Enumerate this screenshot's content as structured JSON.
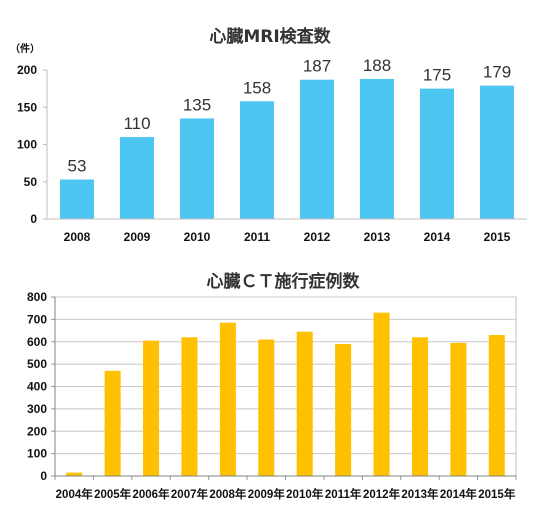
{
  "chart_data": [
    {
      "type": "bar",
      "title": "心臓MRI検査数",
      "unit_label": "（件）",
      "categories": [
        "2008",
        "2009",
        "2010",
        "2011",
        "2012",
        "2013",
        "2014",
        "2015"
      ],
      "values": [
        53,
        110,
        135,
        158,
        187,
        188,
        175,
        179
      ],
      "data_labels": [
        "53",
        "110",
        "135",
        "158",
        "187",
        "188",
        "175",
        "179"
      ],
      "ylim": [
        0,
        200
      ],
      "yticks": [
        "0",
        "50",
        "100",
        "150",
        "200"
      ],
      "grid": false,
      "bar_color": "#4DC6F2"
    },
    {
      "type": "bar",
      "title": "心臓ＣＴ施行症例数",
      "categories": [
        "2004年",
        "2005年",
        "2006年",
        "2007年",
        "2008年",
        "2009年",
        "2010年",
        "2011年",
        "2012年",
        "2013年",
        "2014年",
        "2015年"
      ],
      "values": [
        15,
        470,
        605,
        620,
        685,
        610,
        645,
        590,
        730,
        620,
        595,
        630
      ],
      "ylim": [
        0,
        800
      ],
      "yticks": [
        "0",
        "100",
        "200",
        "300",
        "400",
        "500",
        "600",
        "700",
        "800"
      ],
      "grid": true,
      "bar_color": "#FFC000",
      "grid_color": "#C8C8C8"
    }
  ]
}
